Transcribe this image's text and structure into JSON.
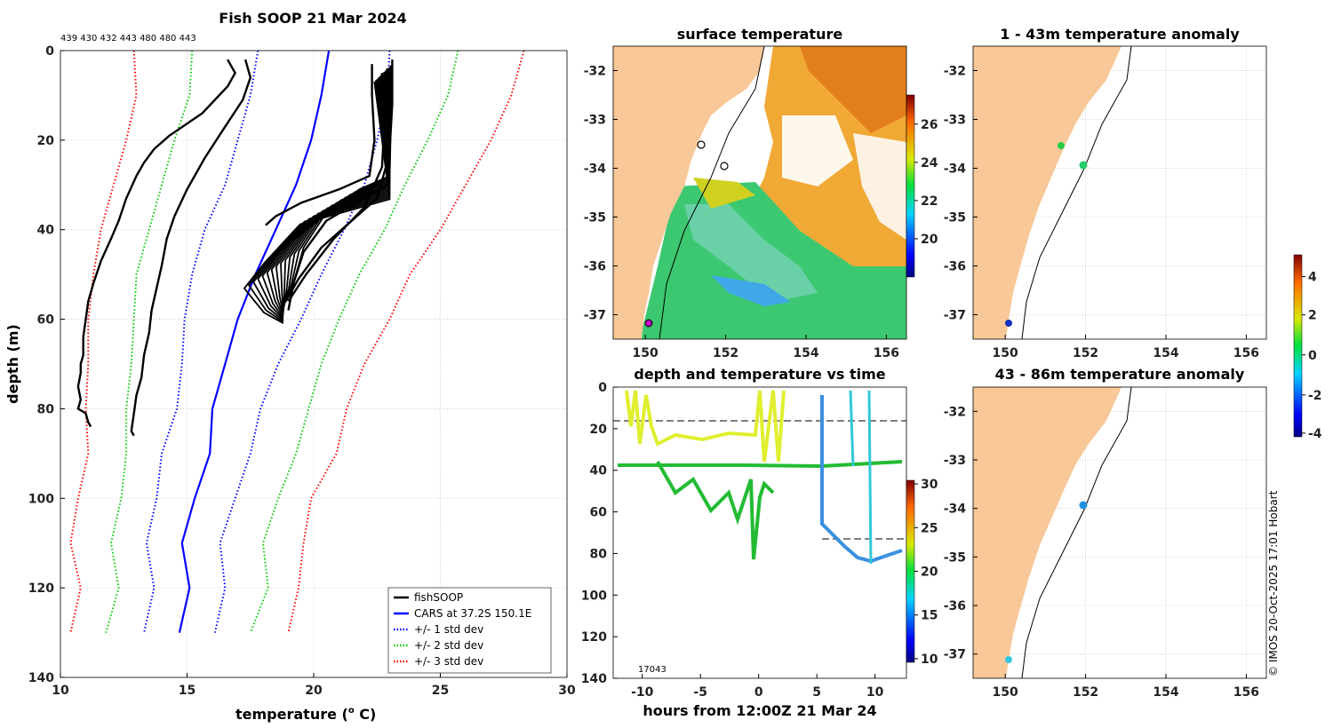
{
  "main_title": "Fish SOOP 21 Mar 2024",
  "station_ids": "439 430 432 443 480 480 443",
  "profile_chart": {
    "type": "line",
    "xlabel": "temperature (",
    "xlabel_sup": "o",
    "xlabel_end": " C)",
    "ylabel": "depth (m)",
    "xlim": [
      10,
      30
    ],
    "ylim": [
      0,
      140
    ],
    "xticks": [
      "10",
      "15",
      "20",
      "25",
      "30"
    ],
    "yticks": [
      "0",
      "20",
      "40",
      "60",
      "80",
      "100",
      "120",
      "140"
    ],
    "cars_depth": [
      0,
      10,
      20,
      30,
      40,
      50,
      60,
      70,
      80,
      90,
      100,
      110,
      120,
      130
    ],
    "series": [
      {
        "name": "CARS at 37.2S 150.1E",
        "color": "#0000ff",
        "style": "solid",
        "values": [
          20.6,
          20.3,
          19.9,
          19.3,
          18.5,
          17.7,
          17.0,
          16.5,
          16.0,
          15.9,
          15.3,
          14.8,
          15.1,
          14.7
        ]
      },
      {
        "name": "-1 std",
        "color": "#0000ff",
        "style": "dot",
        "values": [
          17.8,
          17.5,
          17.0,
          16.5,
          15.7,
          15.2,
          14.9,
          14.8,
          14.6,
          14.0,
          13.8,
          13.4,
          13.7,
          13.3
        ]
      },
      {
        "name": "+1 std",
        "color": "#0000ff",
        "style": "dot",
        "values": [
          23.0,
          22.9,
          22.5,
          22.0,
          21.2,
          20.3,
          19.5,
          18.6,
          17.9,
          17.5,
          16.9,
          16.3,
          16.5,
          16.1
        ]
      },
      {
        "name": "-2 std",
        "color": "#00cc00",
        "style": "dot",
        "values": [
          15.2,
          15.1,
          14.5,
          14.0,
          13.5,
          13.0,
          12.9,
          12.8,
          12.6,
          12.6,
          12.4,
          12.0,
          12.3,
          11.8
        ]
      },
      {
        "name": "+2 std",
        "color": "#00cc00",
        "style": "dot",
        "values": [
          25.7,
          25.3,
          24.5,
          23.6,
          22.8,
          21.8,
          21.0,
          20.3,
          19.8,
          19.3,
          18.6,
          18.0,
          18.2,
          17.5
        ]
      },
      {
        "name": "-3 std",
        "color": "#ff0000",
        "style": "dot",
        "values": [
          12.9,
          13.0,
          12.6,
          12.1,
          11.6,
          11.3,
          11.1,
          11.1,
          11.0,
          11.1,
          10.7,
          10.4,
          10.8,
          10.4
        ]
      },
      {
        "name": "+3 std",
        "color": "#ff0000",
        "style": "dot",
        "values": [
          28.3,
          27.8,
          27.0,
          26.0,
          25.0,
          23.8,
          23.0,
          22.0,
          21.3,
          20.9,
          19.9,
          19.6,
          19.4,
          19.0
        ]
      }
    ],
    "fish_profiles": [
      {
        "temp": [
          16.6,
          16.9,
          16.6,
          15.6,
          14.3,
          13.7,
          13.3,
          13.0,
          12.6,
          12.3,
          12.0,
          11.6,
          11.3,
          11.1,
          11.0,
          10.9,
          10.9,
          10.8,
          10.8,
          10.7,
          10.8,
          10.7,
          11.0,
          11.1,
          11.2
        ],
        "depth": [
          2,
          5,
          8,
          14,
          19,
          22,
          25,
          28,
          33,
          38,
          42,
          47,
          52,
          56,
          60,
          64,
          68,
          70,
          72,
          75,
          78,
          80,
          81,
          83,
          84
        ]
      },
      {
        "temp": [
          17.3,
          17.5,
          17.2,
          16.5,
          15.7,
          15.0,
          14.5,
          14.2,
          14.0,
          13.8,
          13.6,
          13.5,
          13.3,
          13.2,
          13.0,
          12.9,
          12.8,
          12.9
        ],
        "depth": [
          2,
          6,
          11,
          17,
          24,
          31,
          37,
          42,
          48,
          53,
          58,
          63,
          68,
          73,
          77,
          81,
          85,
          86
        ]
      },
      {
        "temp": [
          22.3,
          22.3,
          22.4,
          22.2,
          21.0,
          19.5,
          18.5,
          18.1
        ],
        "depth": [
          3,
          10,
          20,
          28,
          31,
          34,
          37,
          39
        ]
      },
      {
        "temp": [
          23.1,
          23.1,
          23.0,
          22.9,
          22.0,
          20.5,
          19.6,
          19.2,
          19.0
        ],
        "depth": [
          2,
          12,
          22,
          30,
          33,
          38,
          45,
          52,
          58
        ]
      },
      {
        "temp": [
          22.9,
          23.0,
          22.9,
          22.5,
          21.5,
          20.3,
          19.4,
          18.9
        ],
        "depth": [
          4,
          14,
          25,
          33,
          38,
          44,
          51,
          56
        ]
      },
      {
        "temp": [
          22.7,
          22.8,
          22.7,
          22.0,
          20.8,
          19.7,
          19.0
        ],
        "depth": [
          5,
          15,
          26,
          35,
          42,
          50,
          56
        ]
      }
    ],
    "legend": [
      {
        "label": "fishSOOP",
        "color": "#000000",
        "style": "solid"
      },
      {
        "label": "CARS at 37.2S 150.1E",
        "color": "#0000ff",
        "style": "solid"
      },
      {
        "label": "+/- 1 std dev",
        "color": "#0000ff",
        "style": "dot"
      },
      {
        "label": "+/- 2 std dev",
        "color": "#00cc00",
        "style": "dot"
      },
      {
        "label": "+/- 3 std dev",
        "color": "#ff0000",
        "style": "dot"
      }
    ]
  },
  "sst_map": {
    "title": "surface temperature",
    "xticks": [
      "150",
      "152",
      "154",
      "156"
    ],
    "yticks": [
      "-32",
      "-33",
      "-34",
      "-35",
      "-36",
      "-37"
    ],
    "colorbar_ticks": [
      "20",
      "22",
      "24",
      "26"
    ]
  },
  "timeseries": {
    "title": "depth and temperature vs time",
    "xlabel": "hours from 12:00Z 21 Mar 24",
    "xticks": [
      "-10",
      "-5",
      "0",
      "5",
      "10"
    ],
    "yticks": [
      "0",
      "20",
      "40",
      "60",
      "80",
      "100",
      "120",
      "140"
    ],
    "colorbar_ticks": [
      "10",
      "15",
      "20",
      "25",
      "30"
    ],
    "overlay_label": "17043"
  },
  "anom_top": {
    "title": "1 - 43m temperature anomaly",
    "xticks": [
      "150",
      "152",
      "154",
      "156"
    ],
    "yticks": [
      "-32",
      "-33",
      "-34",
      "-35",
      "-36",
      "-37"
    ]
  },
  "anom_bottom": {
    "title": "43 - 86m temperature anomaly",
    "xticks": [
      "150",
      "152",
      "154",
      "156"
    ],
    "yticks": [
      "-32",
      "-33",
      "-34",
      "-35",
      "-36",
      "-37"
    ]
  },
  "anomaly_colorbar": {
    "ticks": [
      "4",
      "2",
      "0",
      "-2",
      "-4"
    ]
  },
  "credit": "© IMOS 20-Oct-2025 17:01 Hobart"
}
